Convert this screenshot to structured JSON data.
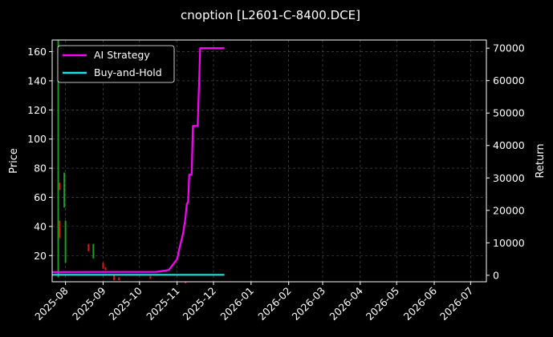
{
  "chart_data": {
    "type": "line",
    "title": "cnoption [L2601-C-8400.DCE]",
    "ylabel_left": "Price",
    "ylabel_right": "Return",
    "x_ticks": [
      "2025-08",
      "2025-09",
      "2025-10",
      "2025-11",
      "2025-12",
      "2026-01",
      "2026-02",
      "2026-03",
      "2026-04",
      "2026-05",
      "2026-06",
      "2026-07"
    ],
    "y_left_ticks": [
      "20",
      "40",
      "60",
      "80",
      "100",
      "120",
      "140",
      "160"
    ],
    "y_right_ticks": [
      "0",
      "10000",
      "20000",
      "30000",
      "40000",
      "50000",
      "60000",
      "70000"
    ],
    "y_left_range": [
      2,
      168
    ],
    "y_right_range": [
      -2000,
      72500
    ],
    "x_range": [
      "2025-07-21",
      "2026-07-14"
    ],
    "grid": true,
    "legend_position": "top-left",
    "colors": {
      "ai": "#ff00ff",
      "bh": "#1fe0e6",
      "up": "#1e9e1e",
      "down": "#e01818"
    },
    "series": [
      {
        "name": "AI Strategy",
        "points": [
          [
            "2025-07-21",
            1000
          ],
          [
            "2025-10-15",
            1050
          ],
          [
            "2025-10-25",
            1600
          ],
          [
            "2025-10-29",
            3500
          ],
          [
            "2025-11-01",
            5000
          ],
          [
            "2025-11-03",
            8500
          ],
          [
            "2025-11-06",
            13000
          ],
          [
            "2025-11-08",
            18000
          ],
          [
            "2025-11-09",
            22000
          ],
          [
            "2025-11-10",
            22500
          ],
          [
            "2025-11-11",
            31000
          ],
          [
            "2025-11-13",
            31000
          ],
          [
            "2025-11-14",
            46000
          ],
          [
            "2025-11-18",
            46000
          ],
          [
            "2025-11-20",
            70000
          ],
          [
            "2025-12-10",
            70000
          ]
        ]
      },
      {
        "name": "Buy-and-Hold",
        "points": [
          [
            "2025-07-21",
            150
          ],
          [
            "2025-12-10",
            150
          ]
        ]
      }
    ],
    "candles": [
      {
        "date": "2025-07-26",
        "low": 5,
        "high": 168,
        "dir": "up"
      },
      {
        "date": "2025-07-27",
        "low": 65,
        "high": 70,
        "dir": "down"
      },
      {
        "date": "2025-07-27",
        "low": 32,
        "high": 44,
        "dir": "down"
      },
      {
        "date": "2025-07-31",
        "low": 53,
        "high": 77,
        "dir": "up"
      },
      {
        "date": "2025-08-01",
        "low": 15,
        "high": 44,
        "dir": "up"
      },
      {
        "date": "2025-08-20",
        "low": 23,
        "high": 28,
        "dir": "down"
      },
      {
        "date": "2025-08-24",
        "low": 18,
        "high": 28,
        "dir": "up"
      },
      {
        "date": "2025-09-01",
        "low": 11,
        "high": 15,
        "dir": "down"
      },
      {
        "date": "2025-09-03",
        "low": 10,
        "high": 12,
        "dir": "down"
      },
      {
        "date": "2025-09-10",
        "low": 3,
        "high": 7,
        "dir": "down"
      },
      {
        "date": "2025-09-14",
        "low": 3,
        "high": 5,
        "dir": "down"
      },
      {
        "date": "2025-10-10",
        "low": 4,
        "high": 6,
        "dir": "down"
      },
      {
        "date": "2025-11-08",
        "low": 1,
        "high": 2,
        "dir": "down"
      }
    ]
  }
}
